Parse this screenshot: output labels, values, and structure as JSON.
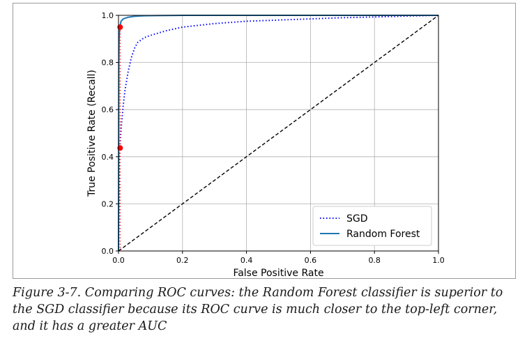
{
  "chart_data": {
    "type": "line",
    "title": "",
    "xlabel": "False Positive Rate",
    "ylabel": "True Positive Rate (Recall)",
    "xlim": [
      0,
      1
    ],
    "ylim": [
      0,
      1
    ],
    "xticks": [
      "0.0",
      "0.2",
      "0.4",
      "0.6",
      "0.8",
      "1.0"
    ],
    "yticks": [
      "0.0",
      "0.2",
      "0.4",
      "0.6",
      "0.8",
      "1.0"
    ],
    "grid": true,
    "legend_position": "lower-right",
    "series": [
      {
        "name": "SGD",
        "style": "dotted",
        "color": "#0000ff",
        "points": [
          [
            0,
            0
          ],
          [
            0.002,
            0.3
          ],
          [
            0.004,
            0.42
          ],
          [
            0.006,
            0.48
          ],
          [
            0.01,
            0.55
          ],
          [
            0.015,
            0.62
          ],
          [
            0.02,
            0.68
          ],
          [
            0.03,
            0.76
          ],
          [
            0.04,
            0.82
          ],
          [
            0.05,
            0.86
          ],
          [
            0.06,
            0.885
          ],
          [
            0.08,
            0.905
          ],
          [
            0.1,
            0.915
          ],
          [
            0.15,
            0.935
          ],
          [
            0.2,
            0.95
          ],
          [
            0.3,
            0.965
          ],
          [
            0.4,
            0.975
          ],
          [
            0.5,
            0.98
          ],
          [
            0.6,
            0.985
          ],
          [
            0.7,
            0.99
          ],
          [
            0.8,
            0.993
          ],
          [
            0.9,
            0.997
          ],
          [
            1.0,
            1.0
          ]
        ]
      },
      {
        "name": "Random Forest",
        "style": "solid",
        "color": "#1f77b4",
        "points": [
          [
            0,
            0
          ],
          [
            0.001,
            0.8
          ],
          [
            0.002,
            0.9
          ],
          [
            0.004,
            0.95
          ],
          [
            0.008,
            0.975
          ],
          [
            0.015,
            0.985
          ],
          [
            0.03,
            0.992
          ],
          [
            0.05,
            0.996
          ],
          [
            0.08,
            0.998
          ],
          [
            0.12,
            0.999
          ],
          [
            0.2,
            1.0
          ],
          [
            1.0,
            1.0
          ]
        ]
      },
      {
        "name": "",
        "style": "dashed",
        "color": "#000000",
        "points": [
          [
            0,
            0
          ],
          [
            1,
            1
          ]
        ]
      }
    ],
    "markers": [
      {
        "x": 0.005,
        "y": 0.95,
        "color": "#ff0000"
      },
      {
        "x": 0.005,
        "y": 0.437,
        "color": "#ff0000"
      }
    ],
    "reference_lines": [
      {
        "x": 0.005,
        "y_from": 0,
        "y_to": 0.95,
        "style": "dotted",
        "color": "#ff0000"
      }
    ]
  },
  "caption": "Figure 3-7. Comparing ROC curves: the Random Forest classifier is superior to the SGD classifier because its ROC curve is much closer to the top-left corner, and it has a greater AUC"
}
